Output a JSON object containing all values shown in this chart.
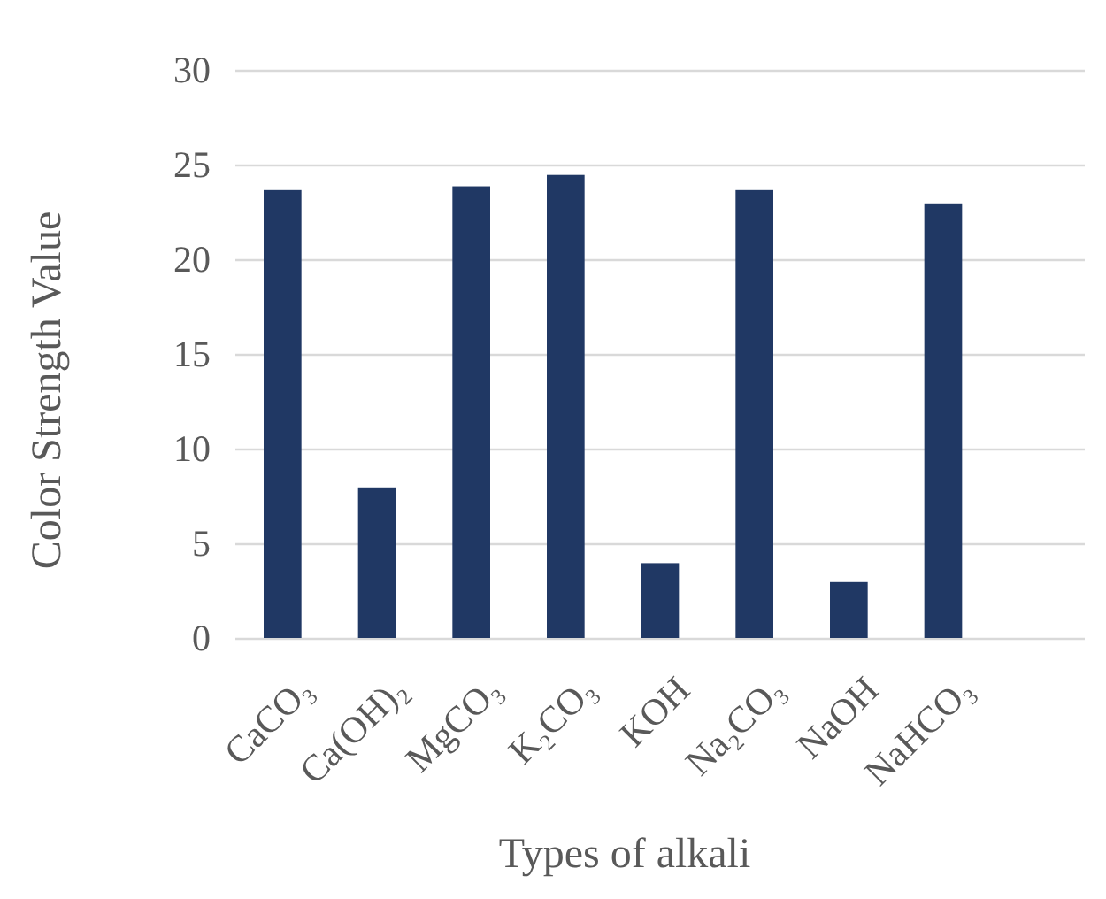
{
  "chart_data": {
    "type": "bar",
    "categories": [
      "CaCO₃",
      "Ca(OH)₂",
      "MgCO₃",
      "K₂CO₃",
      "KOH",
      "Na₂CO₃",
      "NaOH",
      "NaHCO₃"
    ],
    "values": [
      23.7,
      8.0,
      23.9,
      24.5,
      4.0,
      23.7,
      3.0,
      23.0
    ],
    "color": "#203864",
    "xlabel": "Types of alkali",
    "ylabel": "Color Strength Value",
    "ylim": [
      0,
      30
    ],
    "yticks": [
      0,
      5,
      10,
      15,
      20,
      25,
      30
    ],
    "grid": "y"
  }
}
